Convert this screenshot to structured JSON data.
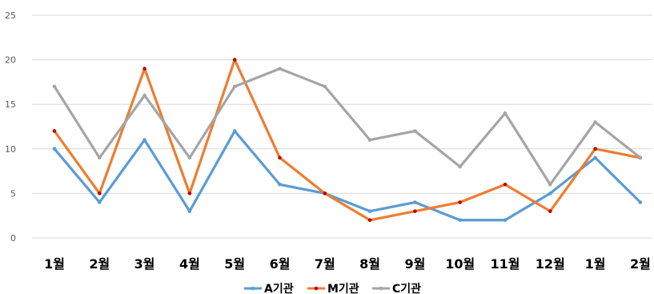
{
  "chart_data": {
    "type": "line",
    "title": "",
    "xlabel": "",
    "ylabel": "",
    "categories": [
      "1월",
      "2월",
      "3월",
      "4월",
      "5월",
      "6월",
      "7월",
      "8월",
      "9월",
      "10월",
      "11월",
      "12월",
      "1월",
      "2월"
    ],
    "ylim": [
      0,
      25
    ],
    "yticks": [
      0,
      5,
      10,
      15,
      20,
      25
    ],
    "grid": true,
    "legend_position": "bottom",
    "series": [
      {
        "name": "A기관",
        "color": "#5B9BD5",
        "marker_color": "#5B9BD5",
        "values": [
          10,
          4,
          11,
          3,
          12,
          6,
          5,
          3,
          4,
          2,
          2,
          5,
          9,
          4
        ]
      },
      {
        "name": "M기관",
        "color": "#ED7D31",
        "marker_color": "#C00000",
        "values": [
          12,
          5,
          19,
          5,
          20,
          9,
          5,
          2,
          3,
          4,
          6,
          3,
          10,
          9
        ]
      },
      {
        "name": "C기관",
        "color": "#A5A5A5",
        "marker_color": "#A5A5A5",
        "values": [
          17,
          9,
          16,
          9,
          17,
          19,
          17,
          11,
          12,
          8,
          14,
          6,
          13,
          9
        ]
      }
    ]
  }
}
